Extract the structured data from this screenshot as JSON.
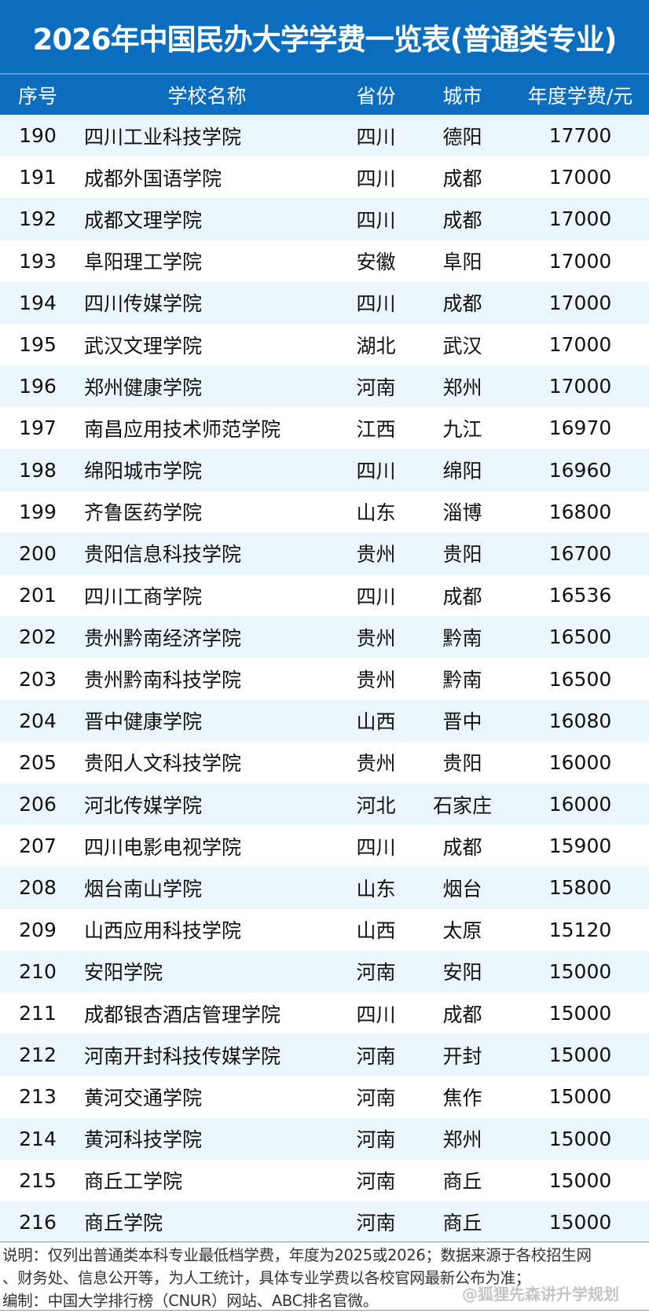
{
  "title": "2026年中国民办大学学费一览表(普通类专业)",
  "colors": {
    "header_bg": "#0b6dbd",
    "stripe": "#eaf6fb"
  },
  "columns": [
    "序号",
    "学校名称",
    "省份",
    "城市",
    "年度学费/元"
  ],
  "rows": [
    [
      "190",
      "四川工业科技学院",
      "四川",
      "德阳",
      "17700"
    ],
    [
      "191",
      "成都外国语学院",
      "四川",
      "成都",
      "17000"
    ],
    [
      "192",
      "成都文理学院",
      "四川",
      "成都",
      "17000"
    ],
    [
      "193",
      "阜阳理工学院",
      "安徽",
      "阜阳",
      "17000"
    ],
    [
      "194",
      "四川传媒学院",
      "四川",
      "成都",
      "17000"
    ],
    [
      "195",
      "武汉文理学院",
      "湖北",
      "武汉",
      "17000"
    ],
    [
      "196",
      "郑州健康学院",
      "河南",
      "郑州",
      "17000"
    ],
    [
      "197",
      "南昌应用技术师范学院",
      "江西",
      "九江",
      "16970"
    ],
    [
      "198",
      "绵阳城市学院",
      "四川",
      "绵阳",
      "16960"
    ],
    [
      "199",
      "齐鲁医药学院",
      "山东",
      "淄博",
      "16800"
    ],
    [
      "200",
      "贵阳信息科技学院",
      "贵州",
      "贵阳",
      "16700"
    ],
    [
      "201",
      "四川工商学院",
      "四川",
      "成都",
      "16536"
    ],
    [
      "202",
      "贵州黔南经济学院",
      "贵州",
      "黔南",
      "16500"
    ],
    [
      "203",
      "贵州黔南科技学院",
      "贵州",
      "黔南",
      "16500"
    ],
    [
      "204",
      "晋中健康学院",
      "山西",
      "晋中",
      "16080"
    ],
    [
      "205",
      "贵阳人文科技学院",
      "贵州",
      "贵阳",
      "16000"
    ],
    [
      "206",
      "河北传媒学院",
      "河北",
      "石家庄",
      "16000"
    ],
    [
      "207",
      "四川电影电视学院",
      "四川",
      "成都",
      "15900"
    ],
    [
      "208",
      "烟台南山学院",
      "山东",
      "烟台",
      "15800"
    ],
    [
      "209",
      "山西应用科技学院",
      "山西",
      "太原",
      "15120"
    ],
    [
      "210",
      "安阳学院",
      "河南",
      "安阳",
      "15000"
    ],
    [
      "211",
      "成都银杏酒店管理学院",
      "四川",
      "成都",
      "15000"
    ],
    [
      "212",
      "河南开封科技传媒学院",
      "河南",
      "开封",
      "15000"
    ],
    [
      "213",
      "黄河交通学院",
      "河南",
      "焦作",
      "15000"
    ],
    [
      "214",
      "黄河科技学院",
      "河南",
      "郑州",
      "15000"
    ],
    [
      "215",
      "商丘工学院",
      "河南",
      "商丘",
      "15000"
    ],
    [
      "216",
      "商丘学院",
      "河南",
      "商丘",
      "15000"
    ]
  ],
  "footer": [
    "说明：仅列出普通类本科专业最低档学费，年度为2025或2026；数据来源于各校招生网",
    "、财务处、信息公开等，为人工统计，具体专业学费以各校官网最新公布为准；",
    "编制：中国大学排行榜（CNUR）网站、ABC排名官微。"
  ],
  "watermark": "@狐狸先森讲升学规划"
}
